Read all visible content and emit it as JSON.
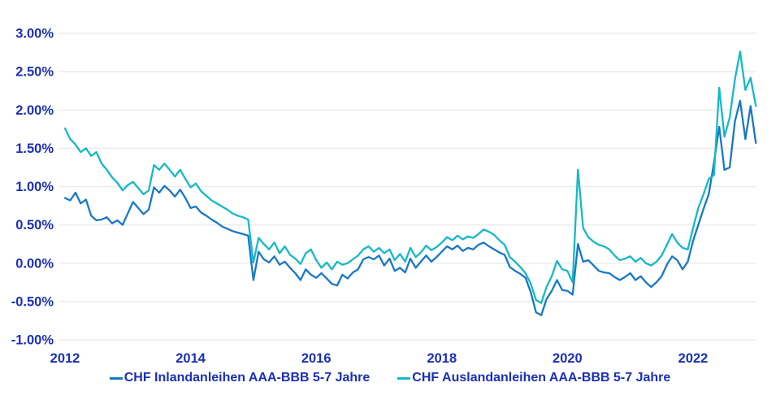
{
  "colors": {
    "label_text": "#1B2FB8",
    "grid": "#ECECEE",
    "background": "#FFFFFF",
    "inland_line": "#1878C8",
    "ausland_line": "#14B9C8"
  },
  "legend": {
    "items": [
      {
        "label": "CHF Inlandanleihen AAA-BBB 5-7 Jahre",
        "color": "#1878C8"
      },
      {
        "label": "CHF Auslandanleihen AAA-BBB 5-7 Jahre",
        "color": "#14B9C8"
      }
    ]
  },
  "chart_data": {
    "type": "line",
    "title": "",
    "xlabel": "",
    "ylabel": "",
    "grid": "horizontal-only",
    "legend_position": "bottom-center",
    "xlim": [
      2012,
      2023
    ],
    "ylim": [
      -1.0,
      3.0
    ],
    "y_ticks": [
      {
        "label": "3.00%",
        "value": 3.0
      },
      {
        "label": "2.50%",
        "value": 2.5
      },
      {
        "label": "2.00%",
        "value": 2.0
      },
      {
        "label": "1.50%",
        "value": 1.5
      },
      {
        "label": "1.00%",
        "value": 1.0
      },
      {
        "label": "0.50%",
        "value": 0.5
      },
      {
        "label": "0.00%",
        "value": 0.0
      },
      {
        "label": "-0.50%",
        "value": -0.5
      },
      {
        "label": "-1.00%",
        "value": -1.0
      }
    ],
    "x_ticks": [
      {
        "label": "2012",
        "value": 2012
      },
      {
        "label": "2014",
        "value": 2014
      },
      {
        "label": "2016",
        "value": 2016
      },
      {
        "label": "2018",
        "value": 2018
      },
      {
        "label": "2020",
        "value": 2020
      },
      {
        "label": "2022",
        "value": 2022
      }
    ],
    "x_start_year": 2012.0,
    "x_step_years": 0.08333,
    "unit": "percent",
    "series": [
      {
        "name": "CHF Inlandanleihen AAA-BBB 5-7 Jahre",
        "color": "#1878C8",
        "values": [
          0.85,
          0.82,
          0.92,
          0.78,
          0.83,
          0.62,
          0.56,
          0.57,
          0.6,
          0.52,
          0.56,
          0.5,
          0.65,
          0.8,
          0.72,
          0.64,
          0.7,
          0.99,
          0.92,
          1.01,
          0.95,
          0.87,
          0.96,
          0.85,
          0.72,
          0.74,
          0.66,
          0.62,
          0.57,
          0.53,
          0.48,
          0.45,
          0.42,
          0.4,
          0.38,
          0.36,
          -0.22,
          0.15,
          0.05,
          0.01,
          0.09,
          -0.02,
          0.02,
          -0.06,
          -0.13,
          -0.22,
          -0.08,
          -0.15,
          -0.19,
          -0.13,
          -0.2,
          -0.27,
          -0.29,
          -0.15,
          -0.2,
          -0.12,
          -0.08,
          0.05,
          0.08,
          0.05,
          0.1,
          -0.03,
          0.06,
          -0.1,
          -0.06,
          -0.12,
          0.06,
          -0.06,
          0.02,
          0.1,
          0.02,
          0.08,
          0.15,
          0.22,
          0.18,
          0.23,
          0.16,
          0.2,
          0.18,
          0.24,
          0.27,
          0.22,
          0.18,
          0.14,
          0.11,
          -0.05,
          -0.1,
          -0.14,
          -0.19,
          -0.38,
          -0.64,
          -0.68,
          -0.47,
          -0.36,
          -0.22,
          -0.35,
          -0.36,
          -0.41,
          0.25,
          0.02,
          0.04,
          -0.03,
          -0.1,
          -0.12,
          -0.13,
          -0.18,
          -0.22,
          -0.18,
          -0.13,
          -0.22,
          -0.17,
          -0.25,
          -0.31,
          -0.25,
          -0.17,
          -0.02,
          0.09,
          0.04,
          -0.08,
          0.02,
          0.29,
          0.5,
          0.71,
          0.9,
          1.31,
          1.78,
          1.22,
          1.25,
          1.85,
          2.12,
          1.62,
          2.05,
          1.57
        ]
      },
      {
        "name": "CHF Auslandanleihen AAA-BBB 5-7 Jahre",
        "color": "#14B9C8",
        "values": [
          1.76,
          1.62,
          1.55,
          1.45,
          1.5,
          1.4,
          1.45,
          1.3,
          1.22,
          1.12,
          1.05,
          0.95,
          1.02,
          1.06,
          0.98,
          0.9,
          0.95,
          1.28,
          1.22,
          1.3,
          1.22,
          1.13,
          1.22,
          1.1,
          0.99,
          1.04,
          0.94,
          0.88,
          0.82,
          0.78,
          0.74,
          0.7,
          0.65,
          0.62,
          0.6,
          0.57,
          0.01,
          0.33,
          0.25,
          0.18,
          0.27,
          0.13,
          0.22,
          0.11,
          0.06,
          -0.01,
          0.13,
          0.18,
          0.04,
          -0.06,
          0.01,
          -0.08,
          0.02,
          -0.02,
          0.0,
          0.05,
          0.1,
          0.18,
          0.22,
          0.15,
          0.2,
          0.13,
          0.18,
          0.04,
          0.12,
          0.02,
          0.2,
          0.08,
          0.14,
          0.23,
          0.17,
          0.21,
          0.27,
          0.34,
          0.3,
          0.36,
          0.31,
          0.35,
          0.33,
          0.38,
          0.44,
          0.41,
          0.37,
          0.3,
          0.24,
          0.08,
          0.02,
          -0.05,
          -0.13,
          -0.27,
          -0.48,
          -0.52,
          -0.31,
          -0.17,
          0.03,
          -0.08,
          -0.1,
          -0.25,
          1.22,
          0.46,
          0.34,
          0.28,
          0.24,
          0.22,
          0.18,
          0.1,
          0.04,
          0.06,
          0.09,
          0.02,
          0.07,
          0.0,
          -0.03,
          0.02,
          0.1,
          0.24,
          0.38,
          0.27,
          0.2,
          0.18,
          0.46,
          0.72,
          0.9,
          1.1,
          1.15,
          2.29,
          1.65,
          1.9,
          2.4,
          2.76,
          2.26,
          2.42,
          2.05
        ]
      }
    ]
  }
}
